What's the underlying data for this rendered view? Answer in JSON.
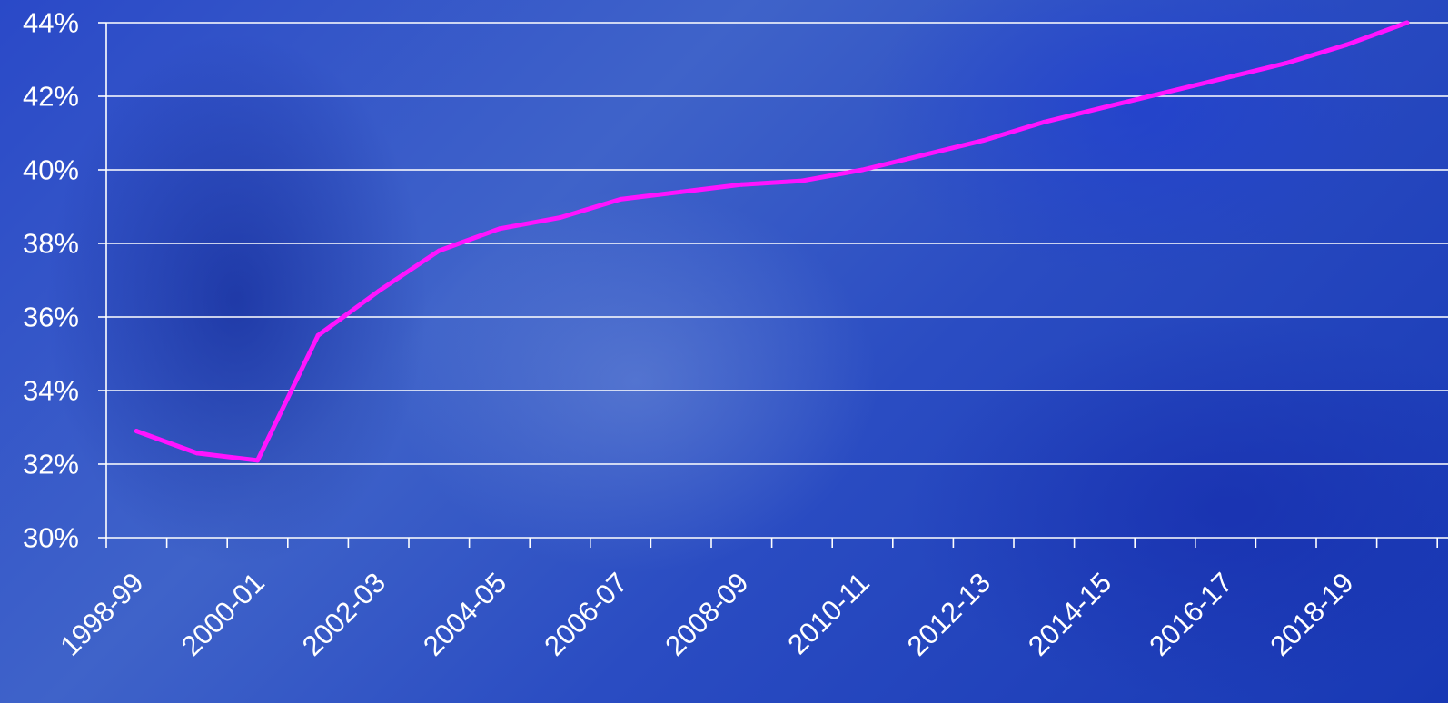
{
  "chart_data": {
    "type": "line",
    "title": "",
    "xlabel": "",
    "ylabel": "",
    "ylim": [
      30,
      44
    ],
    "y_ticks": [
      "30%",
      "32%",
      "34%",
      "36%",
      "38%",
      "40%",
      "42%",
      "44%"
    ],
    "y_tick_values": [
      30,
      32,
      34,
      36,
      38,
      40,
      42,
      44
    ],
    "x_tick_labels": [
      "1998-99",
      "2000-01",
      "2002-03",
      "2004-05",
      "2006-07",
      "2008-09",
      "2010-11",
      "2012-13",
      "2014-15",
      "2016-17",
      "2018-19"
    ],
    "categories": [
      "1998-99",
      "1999-00",
      "2000-01",
      "2001-02",
      "2002-03",
      "2003-04",
      "2004-05",
      "2005-06",
      "2006-07",
      "2007-08",
      "2008-09",
      "2009-10",
      "2010-11",
      "2011-12",
      "2012-13",
      "2013-14",
      "2014-15",
      "2015-16",
      "2016-17",
      "2017-18",
      "2018-19",
      "2019-20"
    ],
    "grid": true,
    "series": [
      {
        "values": [
          32.9,
          32.3,
          32.1,
          35.5,
          36.7,
          37.8,
          38.4,
          38.7,
          39.2,
          39.4,
          39.6,
          39.7,
          40.0,
          40.4,
          40.8,
          41.3,
          41.7,
          42.1,
          42.5,
          42.9,
          43.4,
          44.0
        ],
        "color": "#ff14ff"
      }
    ],
    "colors": {
      "gridline": "#ffffff",
      "axis": "#ffffff",
      "text": "#ffffff",
      "line": "#ff14ff"
    }
  }
}
